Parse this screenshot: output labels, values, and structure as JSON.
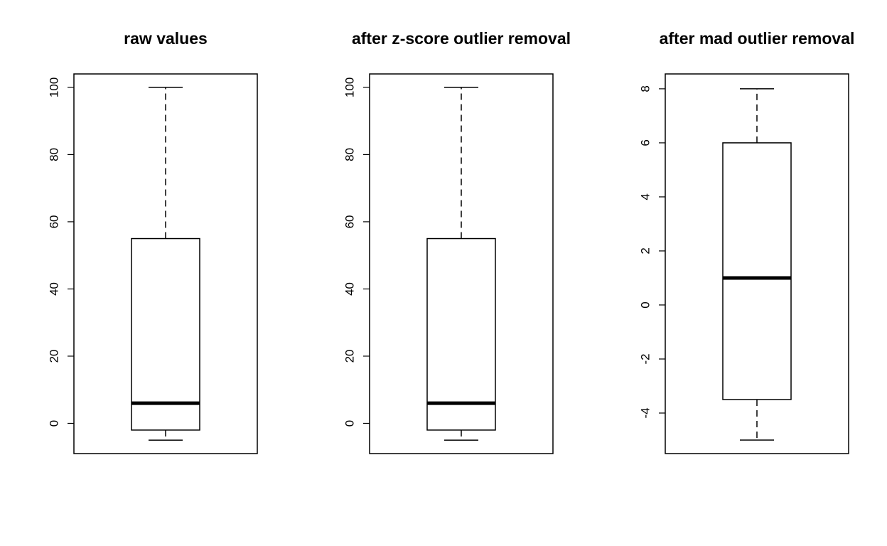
{
  "chart_data": [
    {
      "type": "box",
      "title": "raw values",
      "xlabel": "",
      "ylabel": "",
      "ylim": [
        -9,
        104
      ],
      "yticks": [
        "0",
        "20",
        "40",
        "60",
        "80",
        "100"
      ],
      "box": {
        "whisker_low": -5,
        "q1": -2,
        "median": 6,
        "q3": 55,
        "whisker_high": 100
      }
    },
    {
      "type": "box",
      "title": "after z-score outlier removal",
      "xlabel": "",
      "ylabel": "",
      "ylim": [
        -9,
        104
      ],
      "yticks": [
        "0",
        "20",
        "40",
        "60",
        "80",
        "100"
      ],
      "box": {
        "whisker_low": -5,
        "q1": -2,
        "median": 6,
        "q3": 55,
        "whisker_high": 100
      }
    },
    {
      "type": "box",
      "title": "after mad outlier removal",
      "xlabel": "",
      "ylabel": "",
      "ylim": [
        -5.5,
        8.55
      ],
      "yticks": [
        "-4",
        "-2",
        "0",
        "2",
        "4",
        "6",
        "8"
      ],
      "box": {
        "whisker_low": -5,
        "q1": -3.5,
        "median": 1,
        "q3": 6,
        "whisker_high": 8
      }
    }
  ]
}
